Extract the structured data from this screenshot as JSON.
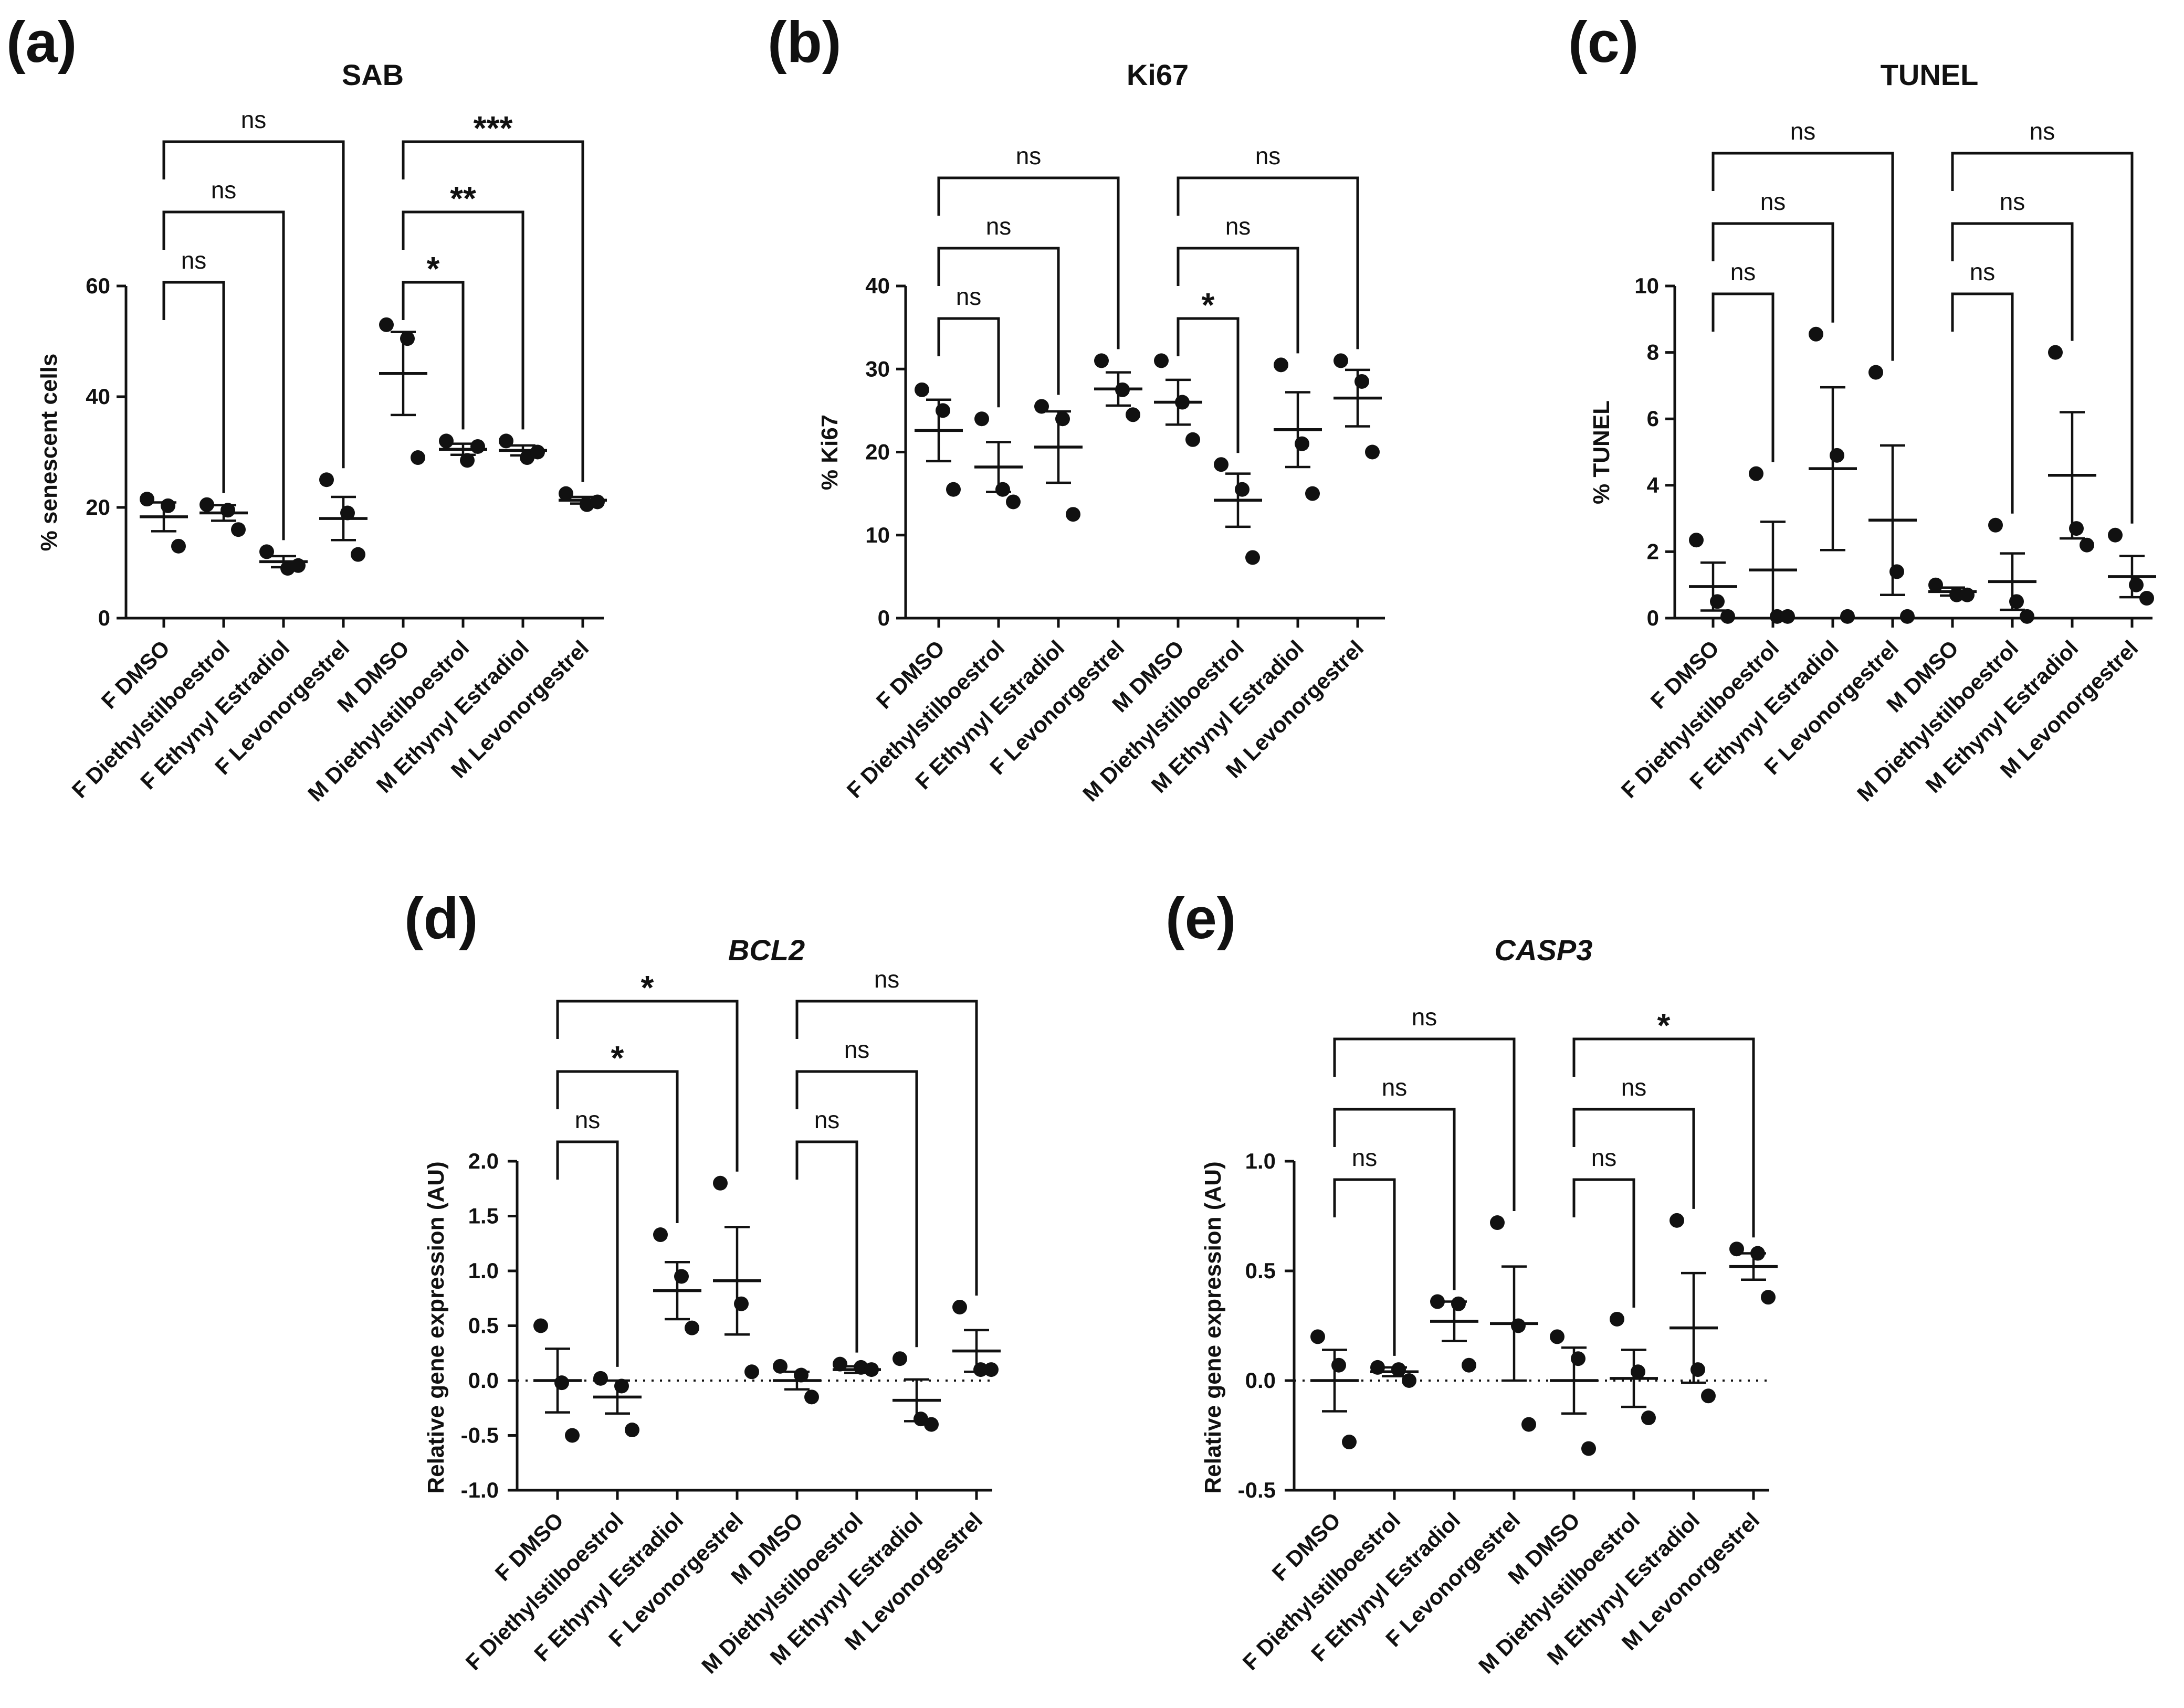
{
  "chart_data": [
    {
      "id": "a",
      "panel_label": "(a)",
      "type": "scatter",
      "title": "SAB",
      "title_italic": false,
      "ylabel": "% senescent cells",
      "xlabel": "",
      "ylim": [
        0,
        60
      ],
      "yticks": [
        0,
        20,
        40,
        60
      ],
      "ytick_labels": [
        "0",
        "20",
        "40",
        "60"
      ],
      "categories": [
        "F DMSO",
        "F Diethylstilboestrol",
        "F Ethynyl Estradiol",
        "F Levonorgestrel",
        "M DMSO",
        "M Diethylstilboestrol",
        "M Ethynyl Estradiol",
        "M Levonorgestrel"
      ],
      "points": [
        [
          21.5,
          20.3,
          13.0
        ],
        [
          20.5,
          19.5,
          16.0
        ],
        [
          12.0,
          9.0,
          9.5
        ],
        [
          25.0,
          19.0,
          11.5
        ],
        [
          53.0,
          50.5,
          29.0
        ],
        [
          32.0,
          28.5,
          31.0
        ],
        [
          32.0,
          29.0,
          30.0
        ],
        [
          22.5,
          20.5,
          21.0
        ]
      ],
      "mean": [
        18.3,
        19.0,
        10.2,
        18.0,
        44.2,
        30.5,
        30.3,
        21.3
      ],
      "sem": [
        2.6,
        1.4,
        1.0,
        3.9,
        7.5,
        1.0,
        0.9,
        0.6
      ],
      "zero_line": false,
      "comparisons": [
        {
          "from": 0,
          "to": 1,
          "label": "ns",
          "level": 0
        },
        {
          "from": 0,
          "to": 2,
          "label": "ns",
          "level": 1
        },
        {
          "from": 0,
          "to": 3,
          "label": "ns",
          "level": 2
        },
        {
          "from": 4,
          "to": 5,
          "label": "*",
          "level": 0
        },
        {
          "from": 4,
          "to": 6,
          "label": "**",
          "level": 1
        },
        {
          "from": 4,
          "to": 7,
          "label": "***",
          "level": 2
        }
      ]
    },
    {
      "id": "b",
      "panel_label": "(b)",
      "type": "scatter",
      "title": "Ki67",
      "title_italic": false,
      "ylabel": "% Ki67",
      "xlabel": "",
      "ylim": [
        0,
        40
      ],
      "yticks": [
        0,
        10,
        20,
        30,
        40
      ],
      "ytick_labels": [
        "0",
        "10",
        "20",
        "30",
        "40"
      ],
      "categories": [
        "F DMSO",
        "F Diethylstilboestrol",
        "F Ethynyl Estradiol",
        "F Levonorgestrel",
        "M DMSO",
        "M Diethylstilboestrol",
        "M Ethynyl Estradiol",
        "M Levonorgestrel"
      ],
      "points": [
        [
          27.5,
          25.0,
          15.5
        ],
        [
          24.0,
          15.5,
          14.0
        ],
        [
          25.5,
          24.0,
          12.5
        ],
        [
          31.0,
          27.5,
          24.5
        ],
        [
          31.0,
          26.0,
          21.5
        ],
        [
          18.5,
          15.5,
          7.3
        ],
        [
          30.5,
          21.0,
          15.0
        ],
        [
          31.0,
          28.5,
          20.0
        ]
      ],
      "mean": [
        22.6,
        18.2,
        20.6,
        27.6,
        26.0,
        14.2,
        22.7,
        26.5
      ],
      "sem": [
        3.7,
        3.0,
        4.3,
        2.0,
        2.7,
        3.2,
        4.5,
        3.4
      ],
      "zero_line": false,
      "comparisons": [
        {
          "from": 0,
          "to": 1,
          "label": "ns",
          "level": 0
        },
        {
          "from": 0,
          "to": 2,
          "label": "ns",
          "level": 1
        },
        {
          "from": 0,
          "to": 3,
          "label": "ns",
          "level": 2
        },
        {
          "from": 4,
          "to": 5,
          "label": "*",
          "level": 0
        },
        {
          "from": 4,
          "to": 6,
          "label": "ns",
          "level": 1
        },
        {
          "from": 4,
          "to": 7,
          "label": "ns",
          "level": 2
        }
      ]
    },
    {
      "id": "c",
      "panel_label": "(c)",
      "type": "scatter",
      "title": "TUNEL",
      "title_italic": false,
      "ylabel": "% TUNEL",
      "xlabel": "",
      "ylim": [
        0,
        10
      ],
      "yticks": [
        0,
        2,
        4,
        6,
        8,
        10
      ],
      "ytick_labels": [
        "0",
        "2",
        "4",
        "6",
        "8",
        "10"
      ],
      "categories": [
        "F DMSO",
        "F Diethylstilboestrol",
        "F Ethynyl Estradiol",
        "F Levonorgestrel",
        "M DMSO",
        "M Diethylstilboestrol",
        "M Ethynyl Estradiol",
        "M Levonorgestrel"
      ],
      "points": [
        [
          2.35,
          0.5,
          0.05
        ],
        [
          4.35,
          0.05,
          0.05
        ],
        [
          8.55,
          4.9,
          0.05
        ],
        [
          7.4,
          1.4,
          0.05
        ],
        [
          1.0,
          0.7,
          0.7
        ],
        [
          2.8,
          0.5,
          0.05
        ],
        [
          8.0,
          2.7,
          2.2
        ],
        [
          2.5,
          1.0,
          0.6
        ]
      ],
      "mean": [
        0.95,
        1.45,
        4.5,
        2.95,
        0.8,
        1.1,
        4.3,
        1.25
      ],
      "sem": [
        0.72,
        1.45,
        2.45,
        2.25,
        0.12,
        0.85,
        1.9,
        0.62
      ],
      "zero_line": false,
      "comparisons": [
        {
          "from": 0,
          "to": 1,
          "label": "ns",
          "level": 0
        },
        {
          "from": 0,
          "to": 2,
          "label": "ns",
          "level": 1
        },
        {
          "from": 0,
          "to": 3,
          "label": "ns",
          "level": 2
        },
        {
          "from": 4,
          "to": 5,
          "label": "ns",
          "level": 0
        },
        {
          "from": 4,
          "to": 6,
          "label": "ns",
          "level": 1
        },
        {
          "from": 4,
          "to": 7,
          "label": "ns",
          "level": 2
        }
      ]
    },
    {
      "id": "d",
      "panel_label": "(d)",
      "type": "scatter",
      "title": "BCL2",
      "title_italic": true,
      "ylabel": "Relative gene expression (AU)",
      "xlabel": "",
      "ylim": [
        -1.0,
        2.0
      ],
      "yticks": [
        -1.0,
        -0.5,
        0.0,
        0.5,
        1.0,
        1.5,
        2.0
      ],
      "ytick_labels": [
        "-1.0",
        "-0.5",
        "0.0",
        "0.5",
        "1.0",
        "1.5",
        "2.0"
      ],
      "categories": [
        "F DMSO",
        "F Diethylstilboestrol",
        "F Ethynyl Estradiol",
        "F Levonorgestrel",
        "M DMSO",
        "M Diethylstilboestrol",
        "M Ethynyl Estradiol",
        "M Levonorgestrel"
      ],
      "points": [
        [
          0.5,
          -0.02,
          -0.5
        ],
        [
          0.02,
          -0.05,
          -0.45
        ],
        [
          1.33,
          0.95,
          0.48
        ],
        [
          1.8,
          0.7,
          0.08
        ],
        [
          0.13,
          0.05,
          -0.15
        ],
        [
          0.15,
          0.12,
          0.1
        ],
        [
          0.2,
          -0.35,
          -0.4
        ],
        [
          0.67,
          0.1,
          0.1
        ]
      ],
      "mean": [
        0.0,
        -0.15,
        0.82,
        0.91,
        0.0,
        0.1,
        -0.18,
        0.27
      ],
      "sem": [
        0.29,
        0.15,
        0.26,
        0.49,
        0.08,
        0.03,
        0.19,
        0.19
      ],
      "zero_line": true,
      "comparisons": [
        {
          "from": 0,
          "to": 1,
          "label": "ns",
          "level": 0
        },
        {
          "from": 0,
          "to": 2,
          "label": "*",
          "level": 1
        },
        {
          "from": 0,
          "to": 3,
          "label": "*",
          "level": 2
        },
        {
          "from": 4,
          "to": 5,
          "label": "ns",
          "level": 0
        },
        {
          "from": 4,
          "to": 6,
          "label": "ns",
          "level": 1
        },
        {
          "from": 4,
          "to": 7,
          "label": "ns",
          "level": 2
        }
      ]
    },
    {
      "id": "e",
      "panel_label": "(e)",
      "type": "scatter",
      "title": "CASP3",
      "title_italic": true,
      "ylabel": "Relative gene expression (AU)",
      "xlabel": "",
      "ylim": [
        -0.5,
        1.0
      ],
      "yticks": [
        -0.5,
        0.0,
        0.5,
        1.0
      ],
      "ytick_labels": [
        "-0.5",
        "0.0",
        "0.5",
        "1.0"
      ],
      "categories": [
        "F DMSO",
        "F Diethylstilboestrol",
        "F Ethynyl Estradiol",
        "F Levonorgestrel",
        "M DMSO",
        "M Diethylstilboestrol",
        "M Ethynyl Estradiol",
        "M Levonorgestrel"
      ],
      "points": [
        [
          0.2,
          0.07,
          -0.28
        ],
        [
          0.06,
          0.05,
          0.0
        ],
        [
          0.36,
          0.35,
          0.07
        ],
        [
          0.72,
          0.25,
          -0.2
        ],
        [
          0.2,
          0.1,
          -0.31
        ],
        [
          0.28,
          0.04,
          -0.17
        ],
        [
          0.73,
          0.05,
          -0.07
        ],
        [
          0.6,
          0.58,
          0.38
        ]
      ],
      "mean": [
        0.0,
        0.04,
        0.27,
        0.26,
        0.0,
        0.01,
        0.24,
        0.52
      ],
      "sem": [
        0.14,
        0.02,
        0.09,
        0.26,
        0.15,
        0.13,
        0.25,
        0.06
      ],
      "zero_line": true,
      "comparisons": [
        {
          "from": 0,
          "to": 1,
          "label": "ns",
          "level": 0
        },
        {
          "from": 0,
          "to": 2,
          "label": "ns",
          "level": 1
        },
        {
          "from": 0,
          "to": 3,
          "label": "ns",
          "level": 2
        },
        {
          "from": 4,
          "to": 5,
          "label": "ns",
          "level": 0
        },
        {
          "from": 4,
          "to": 6,
          "label": "ns",
          "level": 1
        },
        {
          "from": 4,
          "to": 7,
          "label": "*",
          "level": 2
        }
      ]
    }
  ]
}
